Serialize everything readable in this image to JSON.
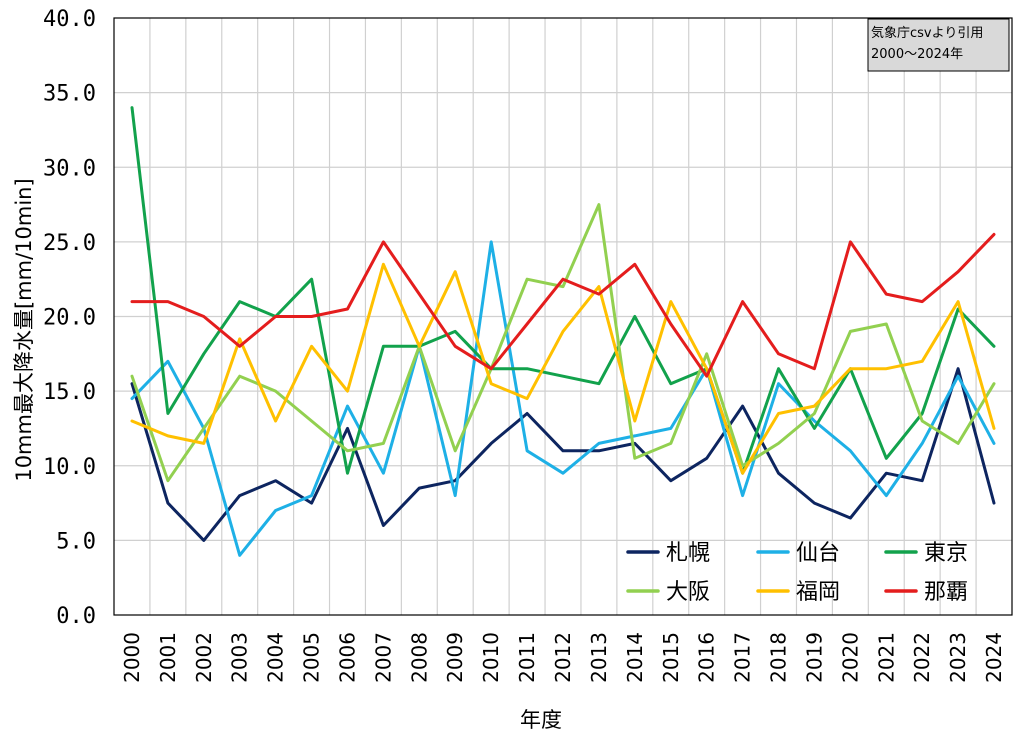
{
  "chart_data": {
    "type": "line",
    "title": "",
    "xlabel": "年度",
    "ylabel": "10mm最大降水量[mm/10min]",
    "ylim": [
      0,
      40
    ],
    "y_ticks": [
      "0.0",
      "5.0",
      "10.0",
      "15.0",
      "20.0",
      "25.0",
      "30.0",
      "35.0",
      "40.0"
    ],
    "grid": true,
    "legend_position": "bottom-right",
    "note": [
      "気象庁csvより引用",
      "2000〜2024年"
    ],
    "x": [
      "2000",
      "2001",
      "2002",
      "2003",
      "2004",
      "2005",
      "2006",
      "2007",
      "2008",
      "2009",
      "2010",
      "2011",
      "2012",
      "2013",
      "2014",
      "2015",
      "2016",
      "2017",
      "2018",
      "2019",
      "2020",
      "2021",
      "2022",
      "2023",
      "2024"
    ],
    "series": [
      {
        "name": "札幌",
        "color": "#0d2560",
        "values": [
          15.5,
          7.5,
          5.0,
          8.0,
          9.0,
          7.5,
          12.5,
          6.0,
          8.5,
          9.0,
          11.5,
          13.5,
          11.0,
          11.0,
          11.5,
          9.0,
          10.5,
          14.0,
          9.5,
          7.5,
          6.5,
          9.5,
          9.0,
          16.5,
          7.5
        ]
      },
      {
        "name": "仙台",
        "color": "#1eb0e6",
        "values": [
          14.5,
          17.0,
          12.5,
          4.0,
          7.0,
          8.0,
          14.0,
          9.5,
          18.0,
          8.0,
          25.0,
          11.0,
          9.5,
          11.5,
          12.0,
          12.5,
          16.5,
          8.0,
          15.5,
          13.0,
          11.0,
          8.0,
          11.5,
          16.0,
          11.5
        ]
      },
      {
        "name": "東京",
        "color": "#12a24c",
        "values": [
          34.0,
          13.5,
          17.5,
          21.0,
          20.0,
          22.5,
          9.5,
          18.0,
          18.0,
          19.0,
          16.5,
          16.5,
          16.0,
          15.5,
          20.0,
          15.5,
          16.5,
          9.5,
          16.5,
          12.5,
          16.5,
          10.5,
          13.5,
          20.5,
          18.0
        ]
      },
      {
        "name": "大阪",
        "color": "#92d050",
        "values": [
          16.0,
          9.0,
          12.5,
          16.0,
          15.0,
          13.0,
          11.0,
          11.5,
          18.0,
          11.0,
          16.5,
          22.5,
          22.0,
          27.5,
          10.5,
          11.5,
          17.5,
          10.0,
          11.5,
          13.5,
          19.0,
          19.5,
          13.0,
          11.5,
          15.5
        ]
      },
      {
        "name": "福岡",
        "color": "#ffc000",
        "values": [
          13.0,
          12.0,
          11.5,
          18.5,
          13.0,
          18.0,
          15.0,
          23.5,
          18.0,
          23.0,
          15.5,
          14.5,
          19.0,
          22.0,
          13.0,
          21.0,
          16.5,
          9.5,
          13.5,
          14.0,
          16.5,
          16.5,
          17.0,
          21.0,
          12.5
        ]
      },
      {
        "name": "那覇",
        "color": "#e41d1d",
        "values": [
          21.0,
          21.0,
          20.0,
          18.0,
          20.0,
          20.0,
          20.5,
          25.0,
          21.5,
          18.0,
          16.5,
          19.5,
          22.5,
          21.5,
          23.5,
          19.5,
          16.0,
          21.0,
          17.5,
          16.5,
          25.0,
          21.5,
          21.0,
          23.0,
          25.5
        ]
      }
    ]
  }
}
